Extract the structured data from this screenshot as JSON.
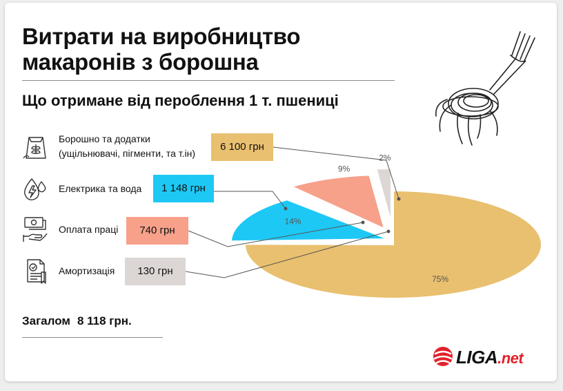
{
  "title_line1": "Витрати на виробництво",
  "title_line2": "макаронів з борошна",
  "subtitle": "Що отримане від пероблення 1 т. пшениці",
  "total": {
    "label": "Загалом",
    "value": "8 118 грн."
  },
  "logo": {
    "main": "LIGA",
    "suffix": ".net"
  },
  "icons": [
    "flour-bag-icon",
    "lightning-drop-icon",
    "wage-hand-icon",
    "amortization-doc-icon",
    "fork-pasta-icon",
    "liga-logo-icon"
  ],
  "colors": {
    "flour": "#e9c06f",
    "electricity": "#1ec8f5",
    "wages": "#f7a08a",
    "amortization": "#dcd7d5",
    "accent": "#e3212b"
  },
  "rows": [
    {
      "label_line1": "Борошно та додатки",
      "label_line2": "(ущільнювачі, пігменти, та т.ін)",
      "value": "6 100 грн"
    },
    {
      "label_line1": "Електрика та вода",
      "label_line2": "",
      "value": "1 148 грн"
    },
    {
      "label_line1": "Оплата праці",
      "label_line2": "",
      "value": "740 грн"
    },
    {
      "label_line1": "Амортизація",
      "label_line2": "",
      "value": "130 грн"
    }
  ],
  "chart_data": {
    "type": "pie",
    "unit": "грн",
    "categories": [
      "Борошно та додатки (ущільнювачі, пігменти, та т.ін)",
      "Електрика та вода",
      "Оплата праці",
      "Амортизація"
    ],
    "values": [
      6100,
      1148,
      740,
      130
    ],
    "percent_labels": [
      "75%",
      "14%",
      "9%",
      "2%"
    ],
    "title": "Що отримане від пероблення 1 т. пшениці",
    "legend": "left"
  }
}
